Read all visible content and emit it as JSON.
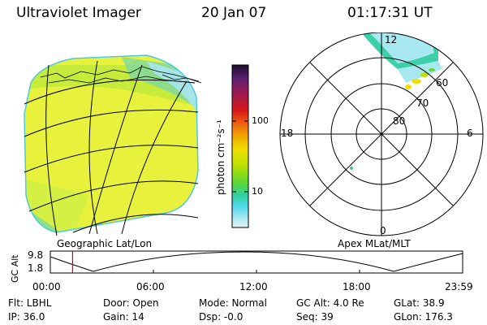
{
  "header": {
    "instrument": "Ultraviolet Imager",
    "date": "20 Jan 07",
    "time": "01:17:31 UT"
  },
  "colorbar": {
    "unit_label": "photon cm⁻²s⁻¹",
    "ticks": [
      "100",
      "10"
    ],
    "scale": "log",
    "colors": [
      "#1a0a2e",
      "#5a1f6e",
      "#a01a50",
      "#d81818",
      "#f06010",
      "#f0a000",
      "#f0e000",
      "#b8e000",
      "#60d830",
      "#30d0a0",
      "#50d8e8",
      "#a8e8f0",
      "#e6f4f6"
    ]
  },
  "geo_map": {
    "label": "Geographic Lat/Lon",
    "fill_color": "#e8f23c"
  },
  "polar_plot": {
    "label": "Apex MLat/MLT",
    "mlt_labels": [
      "12",
      "18",
      "6",
      "0"
    ],
    "lat_labels": [
      "60",
      "70",
      "80"
    ]
  },
  "altitude_strip": {
    "y_label": "GC Alt",
    "y_ticks": [
      "9.8",
      "1.8"
    ],
    "x_ticks": [
      "00:00",
      "06:00",
      "12:00",
      "18:00",
      "23:59"
    ],
    "current_time_fraction": 0.054,
    "marker_color": "#e00000"
  },
  "info": {
    "filter": "Flt: LBHL",
    "ip": "IP: 36.0",
    "door": "Door: Open",
    "gain": "Gain: 14",
    "mode": "Mode: Normal",
    "dsp": "Dsp:   -0.0",
    "gc_alt": "GC Alt: 4.0 Re",
    "seq": "Seq: 39",
    "glat": "GLat:  38.9",
    "glon": "GLon: 176.3"
  }
}
